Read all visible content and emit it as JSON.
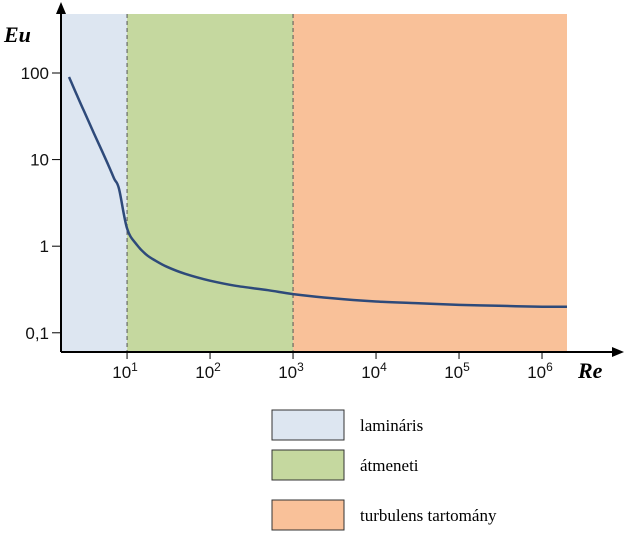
{
  "chart_data": {
    "type": "line",
    "title": "",
    "xlabel": "Re",
    "ylabel": "Eu",
    "x_scale": "log",
    "y_scale": "log",
    "xlim": [
      1.6,
      2000000
    ],
    "ylim": [
      0.06,
      480
    ],
    "grid": false,
    "colors": {
      "line": "#2e4a7a",
      "laminar": "#dde6f1",
      "transition": "#c5d89f",
      "turbulent": "#f9c199",
      "axis": "#000000",
      "boundary": "#555555"
    },
    "x_ticks": [
      {
        "value": 10,
        "base": "10",
        "exp": "1"
      },
      {
        "value": 100,
        "base": "10",
        "exp": "2"
      },
      {
        "value": 1000,
        "base": "10",
        "exp": "3"
      },
      {
        "value": 10000,
        "base": "10",
        "exp": "4"
      },
      {
        "value": 100000,
        "base": "10",
        "exp": "5"
      },
      {
        "value": 1000000,
        "base": "10",
        "exp": "6"
      }
    ],
    "y_ticks": [
      {
        "value": 100,
        "label": "100"
      },
      {
        "value": 10,
        "label": "10"
      },
      {
        "value": 1,
        "label": "1"
      },
      {
        "value": 0.1,
        "label": "0,1"
      }
    ],
    "regions": [
      {
        "name": "laminar",
        "label": "lamináris",
        "from": 1.6,
        "to": 10,
        "color": "#dde6f1"
      },
      {
        "name": "transition",
        "label": "átmeneti",
        "from": 10,
        "to": 1000,
        "color": "#c5d89f"
      },
      {
        "name": "turbulent",
        "label": "turbulens tartomány",
        "from": 1000,
        "to": 2000000,
        "color": "#f9c199"
      }
    ],
    "boundaries": [
      10,
      1000
    ],
    "series": [
      {
        "x": [
          2,
          2.5,
          3,
          4,
          5,
          6,
          7,
          8,
          10,
          13,
          17,
          22,
          30,
          50,
          100,
          200,
          500,
          1000,
          3000,
          10000,
          30000,
          100000,
          300000,
          1000000,
          2000000
        ],
        "y": [
          90,
          55,
          37,
          20,
          12.5,
          8.5,
          6,
          4.6,
          1.6,
          1.05,
          0.8,
          0.68,
          0.58,
          0.48,
          0.4,
          0.35,
          0.31,
          0.28,
          0.25,
          0.23,
          0.22,
          0.21,
          0.205,
          0.2,
          0.2
        ]
      }
    ],
    "legend": {
      "position": "bottom",
      "entries": [
        "lamináris",
        "átmeneti",
        "turbulens tartomány"
      ]
    }
  }
}
